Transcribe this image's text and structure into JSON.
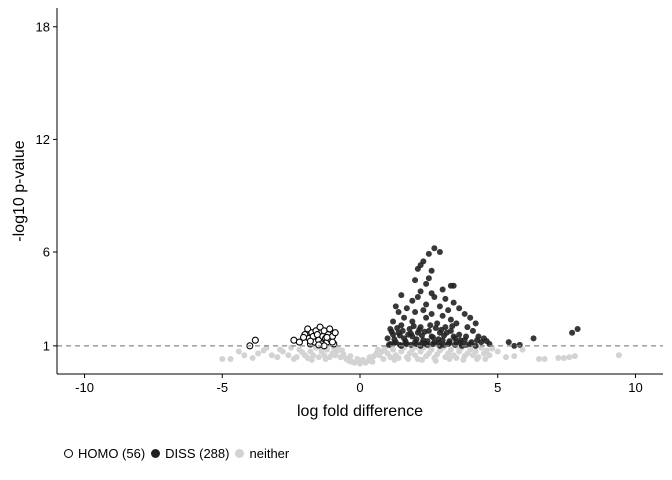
{
  "chart_data": {
    "type": "scatter",
    "title": "",
    "xlabel": "log fold difference",
    "ylabel": "-log10 p-value",
    "xlim": [
      -11,
      11
    ],
    "ylim": [
      -0.5,
      19
    ],
    "x_ticks": [
      -10,
      -5,
      0,
      5,
      10
    ],
    "x_tick_labels": [
      "-10",
      "-5",
      "0",
      "5",
      "10"
    ],
    "y_ticks": [
      1,
      6,
      12,
      18
    ],
    "y_tick_labels": [
      "1",
      "6",
      "12",
      "18"
    ],
    "threshold_line": 1,
    "grid": false,
    "legend_position": "bottom-left",
    "legend": [
      {
        "label": "HOMO (56)",
        "key": "homo"
      },
      {
        "label": "DISS (288)",
        "key": "diss"
      },
      {
        "label": "neither",
        "key": "neither"
      }
    ],
    "series": [
      {
        "name": "HOMO (56)",
        "style": "open",
        "color": "#000000",
        "points": [
          [
            -4.0,
            1.0
          ],
          [
            -3.8,
            1.3
          ],
          [
            -2.4,
            1.3
          ],
          [
            -2.2,
            1.2
          ],
          [
            -2.0,
            1.6
          ],
          [
            -1.9,
            1.9
          ],
          [
            -1.85,
            1.4
          ],
          [
            -1.8,
            1.1
          ],
          [
            -1.75,
            1.7
          ],
          [
            -1.7,
            1.5
          ],
          [
            -1.65,
            1.2
          ],
          [
            -1.6,
            1.8
          ],
          [
            -1.55,
            1.6
          ],
          [
            -1.5,
            1.3
          ],
          [
            -1.45,
            2.0
          ],
          [
            -1.4,
            1.1
          ],
          [
            -1.35,
            1.5
          ],
          [
            -1.3,
            1.8
          ],
          [
            -1.25,
            1.4
          ],
          [
            -1.2,
            1.2
          ],
          [
            -1.15,
            1.6
          ],
          [
            -1.1,
            1.9
          ],
          [
            -1.05,
            1.3
          ],
          [
            -1.0,
            1.5
          ],
          [
            -0.95,
            1.1
          ],
          [
            -0.9,
            1.7
          ],
          [
            -1.3,
            1.0
          ],
          [
            -1.5,
            1.05
          ],
          [
            -1.8,
            1.25
          ],
          [
            -2.05,
            1.45
          ],
          [
            -1.2,
            1.45
          ],
          [
            -1.0,
            1.2
          ]
        ]
      },
      {
        "name": "DISS (288)",
        "style": "filled",
        "color": "#222222",
        "points": [
          [
            2.7,
            6.2
          ],
          [
            2.9,
            6.0
          ],
          [
            2.5,
            5.9
          ],
          [
            2.3,
            5.5
          ],
          [
            2.1,
            5.1
          ],
          [
            2.2,
            5.3
          ],
          [
            2.6,
            5.0
          ],
          [
            2.0,
            4.5
          ],
          [
            2.5,
            4.6
          ],
          [
            3.3,
            4.2
          ],
          [
            3.4,
            4.2
          ],
          [
            2.4,
            4.3
          ],
          [
            3.0,
            4.0
          ],
          [
            2.2,
            3.9
          ],
          [
            2.6,
            3.8
          ],
          [
            1.5,
            3.7
          ],
          [
            2.1,
            3.6
          ],
          [
            2.7,
            3.6
          ],
          [
            3.1,
            3.5
          ],
          [
            1.9,
            3.4
          ],
          [
            3.4,
            3.3
          ],
          [
            2.4,
            3.2
          ],
          [
            1.3,
            3.1
          ],
          [
            2.9,
            3.1
          ],
          [
            3.6,
            3.0
          ],
          [
            1.7,
            3.0
          ],
          [
            2.3,
            2.9
          ],
          [
            3.2,
            2.9
          ],
          [
            1.4,
            2.8
          ],
          [
            2.0,
            2.8
          ],
          [
            2.6,
            2.7
          ],
          [
            3.8,
            2.7
          ],
          [
            3.0,
            2.6
          ],
          [
            1.6,
            2.5
          ],
          [
            2.4,
            2.5
          ],
          [
            4.0,
            2.5
          ],
          [
            3.3,
            2.4
          ],
          [
            1.2,
            2.3
          ],
          [
            1.9,
            2.3
          ],
          [
            2.8,
            2.2
          ],
          [
            3.5,
            2.2
          ],
          [
            4.2,
            2.2
          ],
          [
            1.5,
            2.1
          ],
          [
            2.2,
            2.0
          ],
          [
            3.1,
            2.0
          ],
          [
            3.9,
            2.0
          ],
          [
            1.1,
            1.9
          ],
          [
            1.8,
            1.9
          ],
          [
            2.5,
            1.8
          ],
          [
            3.3,
            1.8
          ],
          [
            4.1,
            1.8
          ],
          [
            1.4,
            1.7
          ],
          [
            2.1,
            1.7
          ],
          [
            2.9,
            1.7
          ],
          [
            3.6,
            1.6
          ],
          [
            1.2,
            1.6
          ],
          [
            1.9,
            1.5
          ],
          [
            2.6,
            1.5
          ],
          [
            3.4,
            1.5
          ],
          [
            4.3,
            1.5
          ],
          [
            4.5,
            1.4
          ],
          [
            1.0,
            1.4
          ],
          [
            1.6,
            1.4
          ],
          [
            2.3,
            1.3
          ],
          [
            3.0,
            1.3
          ],
          [
            3.8,
            1.3
          ],
          [
            1.3,
            1.2
          ],
          [
            2.0,
            1.2
          ],
          [
            2.7,
            1.2
          ],
          [
            3.5,
            1.2
          ],
          [
            4.4,
            1.2
          ],
          [
            1.1,
            1.1
          ],
          [
            1.7,
            1.1
          ],
          [
            2.4,
            1.1
          ],
          [
            3.2,
            1.1
          ],
          [
            4.0,
            1.1
          ],
          [
            4.7,
            1.1
          ],
          [
            1.5,
            1.0
          ],
          [
            2.2,
            1.0
          ],
          [
            2.9,
            1.0
          ],
          [
            3.7,
            1.0
          ],
          [
            4.2,
            1.0
          ],
          [
            5.4,
            1.2
          ],
          [
            5.6,
            1.0
          ],
          [
            5.8,
            1.05
          ],
          [
            6.3,
            1.4
          ],
          [
            7.7,
            1.7
          ],
          [
            7.9,
            1.9
          ],
          [
            1.25,
            1.35
          ],
          [
            1.45,
            1.55
          ],
          [
            1.65,
            1.25
          ],
          [
            1.85,
            1.65
          ],
          [
            2.05,
            1.35
          ],
          [
            2.25,
            1.55
          ],
          [
            2.45,
            1.25
          ],
          [
            2.65,
            1.45
          ],
          [
            2.85,
            1.35
          ],
          [
            3.05,
            1.55
          ],
          [
            3.25,
            1.25
          ],
          [
            3.45,
            1.4
          ],
          [
            3.65,
            1.3
          ],
          [
            3.85,
            1.5
          ],
          [
            1.15,
            1.75
          ],
          [
            1.35,
            1.95
          ],
          [
            1.55,
            1.8
          ],
          [
            1.75,
            1.6
          ],
          [
            1.95,
            2.05
          ],
          [
            2.15,
            1.85
          ],
          [
            2.35,
            1.75
          ],
          [
            2.55,
            2.1
          ],
          [
            2.75,
            1.95
          ],
          [
            2.95,
            1.85
          ],
          [
            3.15,
            1.7
          ],
          [
            3.35,
            2.05
          ],
          [
            1.05,
            1.05
          ],
          [
            1.25,
            1.15
          ],
          [
            1.45,
            1.05
          ],
          [
            1.65,
            1.15
          ],
          [
            1.85,
            1.05
          ],
          [
            2.05,
            1.1
          ],
          [
            2.25,
            1.15
          ],
          [
            2.45,
            1.05
          ],
          [
            2.65,
            1.1
          ],
          [
            2.85,
            1.15
          ],
          [
            3.05,
            1.05
          ],
          [
            3.25,
            1.15
          ],
          [
            3.45,
            1.05
          ],
          [
            3.65,
            1.15
          ],
          [
            3.85,
            1.05
          ],
          [
            4.05,
            1.2
          ],
          [
            4.25,
            1.3
          ],
          [
            4.6,
            1.25
          ]
        ]
      },
      {
        "name": "neither",
        "style": "filled",
        "color": "#d3d3d3",
        "points": [
          [
            -5.0,
            0.3
          ],
          [
            -4.7,
            0.3
          ],
          [
            -4.4,
            0.7
          ],
          [
            -4.2,
            0.5
          ],
          [
            -3.9,
            0.35
          ],
          [
            -3.7,
            0.6
          ],
          [
            -3.4,
            0.9
          ],
          [
            -3.2,
            0.5
          ],
          [
            -3.0,
            0.4
          ],
          [
            -2.8,
            0.7
          ],
          [
            -2.6,
            0.5
          ],
          [
            -2.5,
            0.9
          ],
          [
            -2.3,
            0.4
          ],
          [
            -2.2,
            0.8
          ],
          [
            -2.0,
            0.5
          ],
          [
            -1.9,
            0.35
          ],
          [
            -1.8,
            0.7
          ],
          [
            -1.7,
            0.5
          ],
          [
            -1.6,
            0.9
          ],
          [
            -1.5,
            0.4
          ],
          [
            -1.4,
            0.7
          ],
          [
            -1.3,
            0.5
          ],
          [
            -1.2,
            0.8
          ],
          [
            -1.1,
            0.4
          ],
          [
            -1.0,
            0.6
          ],
          [
            -0.9,
            0.5
          ],
          [
            -0.8,
            0.85
          ],
          [
            -0.7,
            0.4
          ],
          [
            -0.6,
            0.55
          ],
          [
            -0.5,
            0.3
          ],
          [
            -0.4,
            0.2
          ],
          [
            -0.3,
            0.15
          ],
          [
            -0.2,
            0.1
          ],
          [
            0.0,
            0.05
          ],
          [
            0.2,
            0.1
          ],
          [
            0.3,
            0.2
          ],
          [
            0.4,
            0.3
          ],
          [
            0.5,
            0.45
          ],
          [
            0.6,
            0.6
          ],
          [
            0.7,
            0.5
          ],
          [
            0.8,
            0.7
          ],
          [
            0.9,
            0.85
          ],
          [
            1.0,
            0.6
          ],
          [
            1.1,
            0.4
          ],
          [
            1.2,
            0.8
          ],
          [
            1.3,
            0.5
          ],
          [
            1.4,
            0.35
          ],
          [
            1.5,
            0.7
          ],
          [
            1.6,
            0.9
          ],
          [
            1.7,
            0.4
          ],
          [
            1.8,
            0.6
          ],
          [
            1.9,
            0.8
          ],
          [
            2.0,
            0.5
          ],
          [
            2.1,
            0.3
          ],
          [
            2.2,
            0.7
          ],
          [
            2.3,
            0.9
          ],
          [
            2.4,
            0.45
          ],
          [
            2.5,
            0.6
          ],
          [
            2.6,
            0.8
          ],
          [
            2.7,
            0.35
          ],
          [
            2.8,
            0.55
          ],
          [
            2.9,
            0.75
          ],
          [
            3.0,
            0.9
          ],
          [
            3.1,
            0.4
          ],
          [
            3.2,
            0.6
          ],
          [
            3.3,
            0.8
          ],
          [
            3.4,
            0.5
          ],
          [
            3.5,
            0.35
          ],
          [
            3.6,
            0.7
          ],
          [
            3.7,
            0.9
          ],
          [
            3.8,
            0.45
          ],
          [
            3.9,
            0.6
          ],
          [
            4.0,
            0.8
          ],
          [
            4.1,
            0.5
          ],
          [
            4.2,
            0.7
          ],
          [
            4.3,
            0.4
          ],
          [
            4.4,
            0.9
          ],
          [
            4.5,
            0.6
          ],
          [
            4.6,
            0.75
          ],
          [
            4.7,
            0.5
          ],
          [
            4.8,
            0.85
          ],
          [
            5.0,
            0.7
          ],
          [
            5.3,
            0.4
          ],
          [
            5.6,
            0.45
          ],
          [
            5.9,
            0.8
          ],
          [
            6.5,
            0.3
          ],
          [
            6.7,
            0.3
          ],
          [
            7.2,
            0.35
          ],
          [
            7.4,
            0.35
          ],
          [
            7.6,
            0.4
          ],
          [
            7.8,
            0.45
          ],
          [
            9.4,
            0.5
          ],
          [
            -2.1,
            0.65
          ],
          [
            -1.75,
            0.25
          ],
          [
            -1.25,
            0.3
          ],
          [
            -0.85,
            0.7
          ],
          [
            0.85,
            0.3
          ],
          [
            1.25,
            0.25
          ],
          [
            1.75,
            0.3
          ],
          [
            2.25,
            0.25
          ],
          [
            2.75,
            0.2
          ],
          [
            3.25,
            0.3
          ],
          [
            3.75,
            0.25
          ],
          [
            4.25,
            0.3
          ],
          [
            -3.5,
            0.75
          ],
          [
            -2.9,
            0.8
          ],
          [
            -2.4,
            0.3
          ],
          [
            -1.45,
            0.95
          ],
          [
            -0.95,
            0.9
          ],
          [
            -0.65,
            0.75
          ],
          [
            0.65,
            0.8
          ],
          [
            1.15,
            0.95
          ],
          [
            1.55,
            0.95
          ],
          [
            2.05,
            0.95
          ],
          [
            2.55,
            0.95
          ],
          [
            3.05,
            0.95
          ],
          [
            3.55,
            0.95
          ],
          [
            4.05,
            0.95
          ],
          [
            4.55,
            0.3
          ],
          [
            -0.35,
            0.45
          ],
          [
            0.35,
            0.4
          ],
          [
            0.1,
            0.25
          ],
          [
            -0.1,
            0.3
          ],
          [
            0.45,
            0.15
          ]
        ]
      }
    ]
  }
}
